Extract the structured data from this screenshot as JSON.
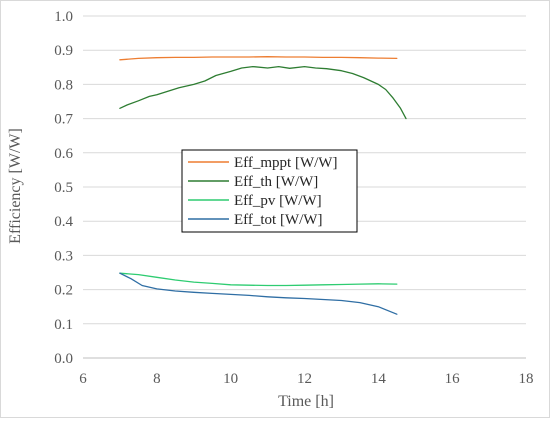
{
  "chart_data": {
    "type": "line",
    "title": "",
    "xlabel": "Time [h]",
    "ylabel": "Efficiency [W/W]",
    "xlim": [
      6,
      18
    ],
    "ylim": [
      0.0,
      1.0
    ],
    "x_ticks": [
      6,
      8,
      10,
      12,
      14,
      16,
      18
    ],
    "y_ticks": [
      0.0,
      0.1,
      0.2,
      0.3,
      0.4,
      0.5,
      0.6,
      0.7,
      0.8,
      0.9,
      1.0
    ],
    "x_tick_labels": [
      "6",
      "8",
      "10",
      "12",
      "14",
      "16",
      "18"
    ],
    "y_tick_labels": [
      "0.0",
      "0.1",
      "0.2",
      "0.3",
      "0.4",
      "0.5",
      "0.6",
      "0.7",
      "0.8",
      "0.9",
      "1.0"
    ],
    "grid": "horizontal",
    "legend_position": "center-left",
    "series": [
      {
        "name": "Eff_mppt [W/W]",
        "color": "#ED7D31",
        "x": [
          7.0,
          7.5,
          8.0,
          8.5,
          9.0,
          9.5,
          10.0,
          10.5,
          11.0,
          11.5,
          12.0,
          12.5,
          13.0,
          13.5,
          14.0,
          14.5
        ],
        "y": [
          0.872,
          0.876,
          0.878,
          0.879,
          0.879,
          0.88,
          0.88,
          0.88,
          0.881,
          0.88,
          0.88,
          0.879,
          0.879,
          0.878,
          0.877,
          0.876
        ]
      },
      {
        "name": "Eff_th [W/W]",
        "color": "#2E7D32",
        "x": [
          7.0,
          7.2,
          7.5,
          7.8,
          8.0,
          8.3,
          8.6,
          9.0,
          9.3,
          9.6,
          10.0,
          10.3,
          10.6,
          11.0,
          11.3,
          11.6,
          12.0,
          12.3,
          12.6,
          13.0,
          13.3,
          13.6,
          14.0,
          14.2,
          14.4,
          14.6,
          14.75
        ],
        "y": [
          0.73,
          0.74,
          0.752,
          0.765,
          0.77,
          0.78,
          0.79,
          0.8,
          0.81,
          0.826,
          0.838,
          0.848,
          0.852,
          0.848,
          0.852,
          0.847,
          0.852,
          0.848,
          0.846,
          0.84,
          0.832,
          0.82,
          0.8,
          0.785,
          0.76,
          0.73,
          0.7
        ]
      },
      {
        "name": "Eff_pv [W/W]",
        "color": "#2ECC71",
        "x": [
          7.0,
          7.5,
          8.0,
          8.5,
          9.0,
          9.5,
          10.0,
          10.5,
          11.0,
          11.5,
          12.0,
          12.5,
          13.0,
          13.5,
          14.0,
          14.5
        ],
        "y": [
          0.248,
          0.244,
          0.236,
          0.228,
          0.222,
          0.218,
          0.214,
          0.213,
          0.212,
          0.212,
          0.213,
          0.214,
          0.215,
          0.216,
          0.217,
          0.216
        ]
      },
      {
        "name": "Eff_tot [W/W]",
        "color": "#2F6EA4",
        "x": [
          7.0,
          7.3,
          7.6,
          8.0,
          8.5,
          9.0,
          9.5,
          10.0,
          10.5,
          11.0,
          11.5,
          12.0,
          12.5,
          13.0,
          13.5,
          14.0,
          14.5
        ],
        "y": [
          0.248,
          0.232,
          0.212,
          0.202,
          0.196,
          0.192,
          0.189,
          0.186,
          0.183,
          0.179,
          0.176,
          0.174,
          0.171,
          0.168,
          0.162,
          0.15,
          0.128
        ]
      }
    ]
  }
}
